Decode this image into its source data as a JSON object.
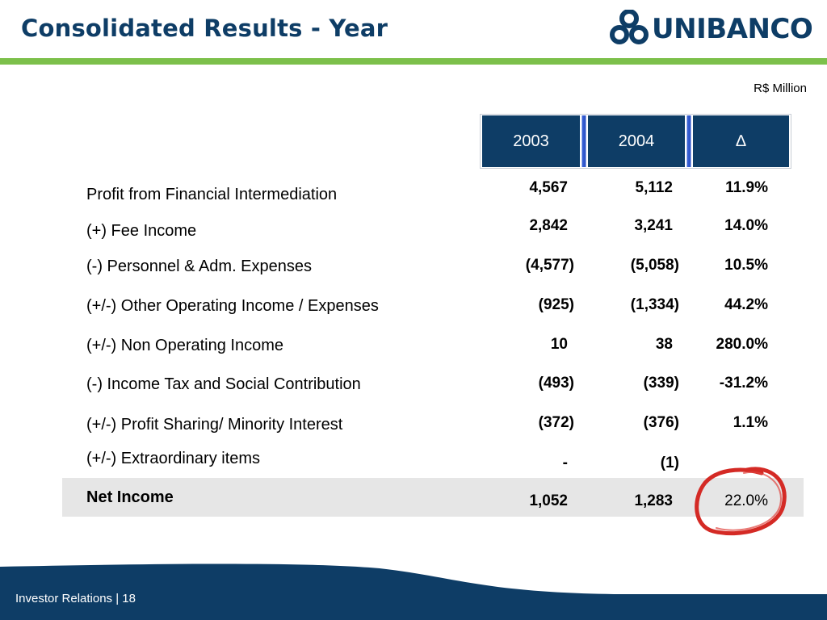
{
  "header": {
    "title": "Consolidated Results - Year",
    "logo_text": "UNIBANCO"
  },
  "unit": "R$ Million",
  "table": {
    "columns": [
      "2003",
      "2004",
      "∆"
    ],
    "rows": [
      {
        "label": "Profit from Financial Intermediation",
        "v2003": "4,567",
        "v2004": "5,112",
        "delta": "11.9%"
      },
      {
        "label": "(+) Fee Income",
        "v2003": "2,842",
        "v2004": "3,241",
        "delta": "14.0%"
      },
      {
        "label": "(-) Personnel & Adm. Expenses",
        "v2003": "(4,577)",
        "v2004": "(5,058)",
        "delta": "10.5%"
      },
      {
        "label": "(+/-) Other Operating Income / Expenses",
        "v2003": "(925)",
        "v2004": "(1,334)",
        "delta": "44.2%"
      },
      {
        "label": "(+/-) Non Operating Income",
        "v2003": "10",
        "v2004": "38",
        "delta": "280.0%"
      },
      {
        "label": "(-) Income Tax and Social Contribution",
        "v2003": "(493)",
        "v2004": "(339)",
        "delta": "-31.2%"
      },
      {
        "label": "(+/-) Profit Sharing/ Minority Interest",
        "v2003": "(372)",
        "v2004": "(376)",
        "delta": "1.1%"
      },
      {
        "label": "(+/-) Extraordinary items",
        "v2003": "-",
        "v2004": "(1)",
        "delta": ""
      }
    ],
    "net": {
      "label": "Net Income",
      "v2003": "1,052",
      "v2004": "1,283",
      "delta": "22.0%"
    }
  },
  "footer": {
    "text": "Investor Relations | 18"
  },
  "colors": {
    "brand_navy": "#0e3d66",
    "accent_green": "#7cc04b",
    "highlight_red": "#d42a25",
    "net_band": "#e6e6e6"
  }
}
